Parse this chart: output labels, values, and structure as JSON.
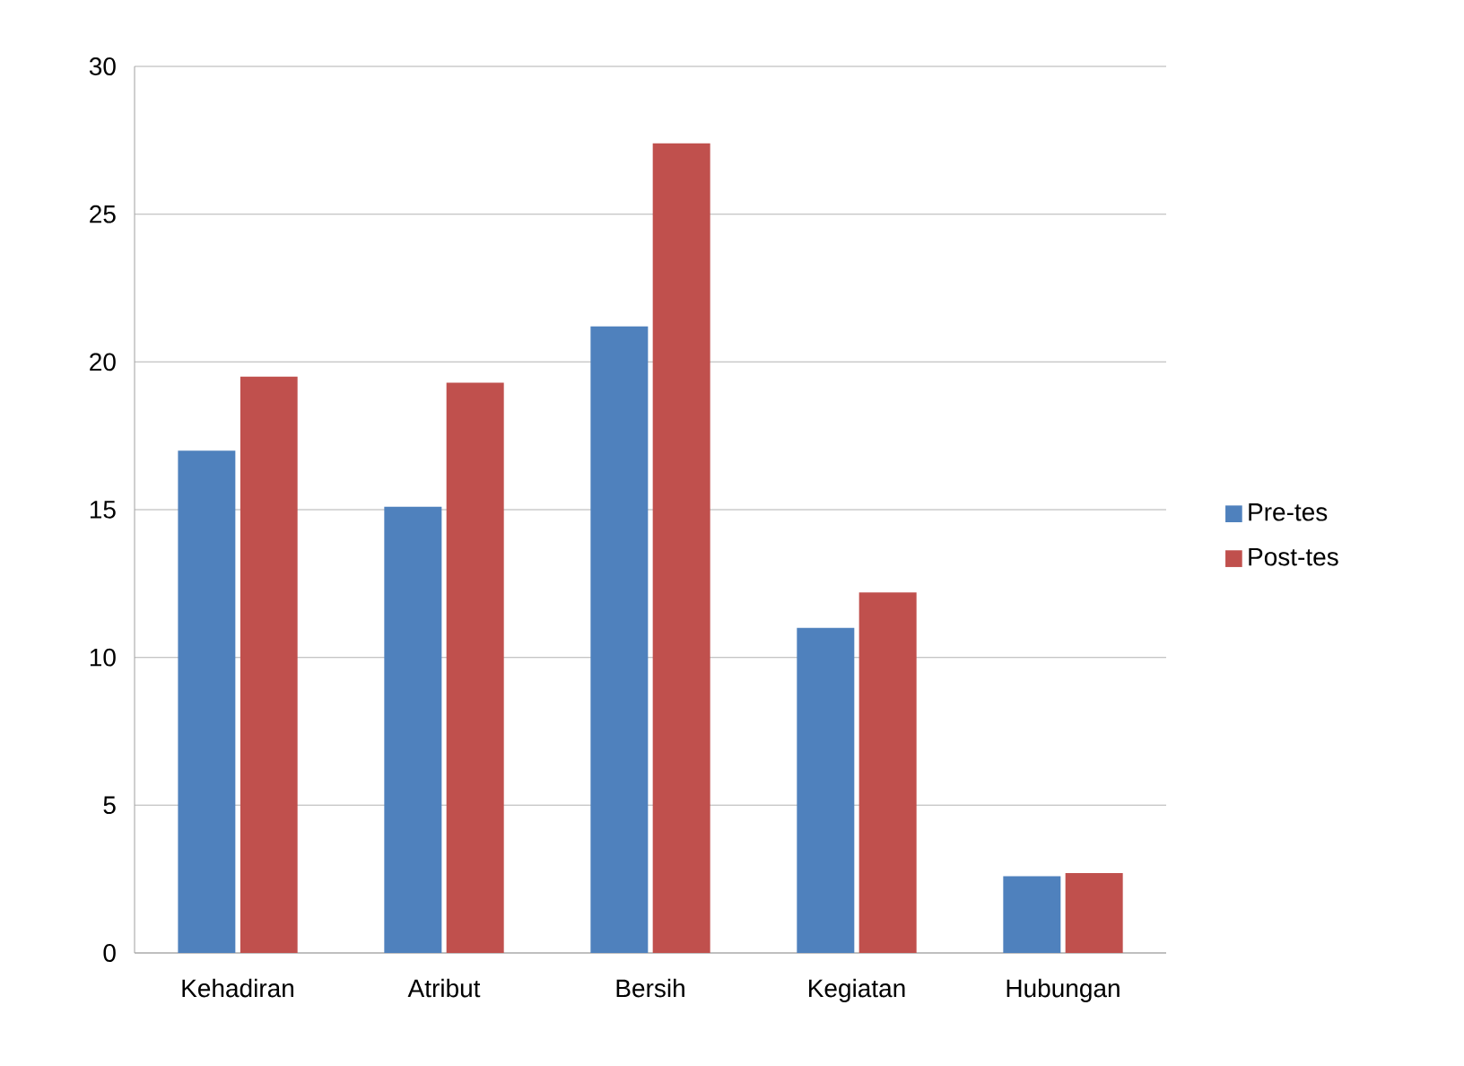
{
  "chart_data": {
    "type": "bar",
    "categories": [
      "Kehadiran",
      "Atribut",
      "Bersih",
      "Kegiatan",
      "Hubungan"
    ],
    "series": [
      {
        "name": "Pre-tes",
        "color": "#4f81bd",
        "values": [
          17.0,
          15.1,
          21.2,
          11.0,
          2.6
        ]
      },
      {
        "name": "Post-tes",
        "color": "#c0504d",
        "values": [
          19.5,
          19.3,
          27.4,
          12.2,
          2.7
        ]
      }
    ],
    "ylim": [
      0,
      30
    ],
    "yticks": [
      0,
      5,
      10,
      15,
      20,
      25,
      30
    ],
    "grid": "y",
    "legend": "right"
  }
}
